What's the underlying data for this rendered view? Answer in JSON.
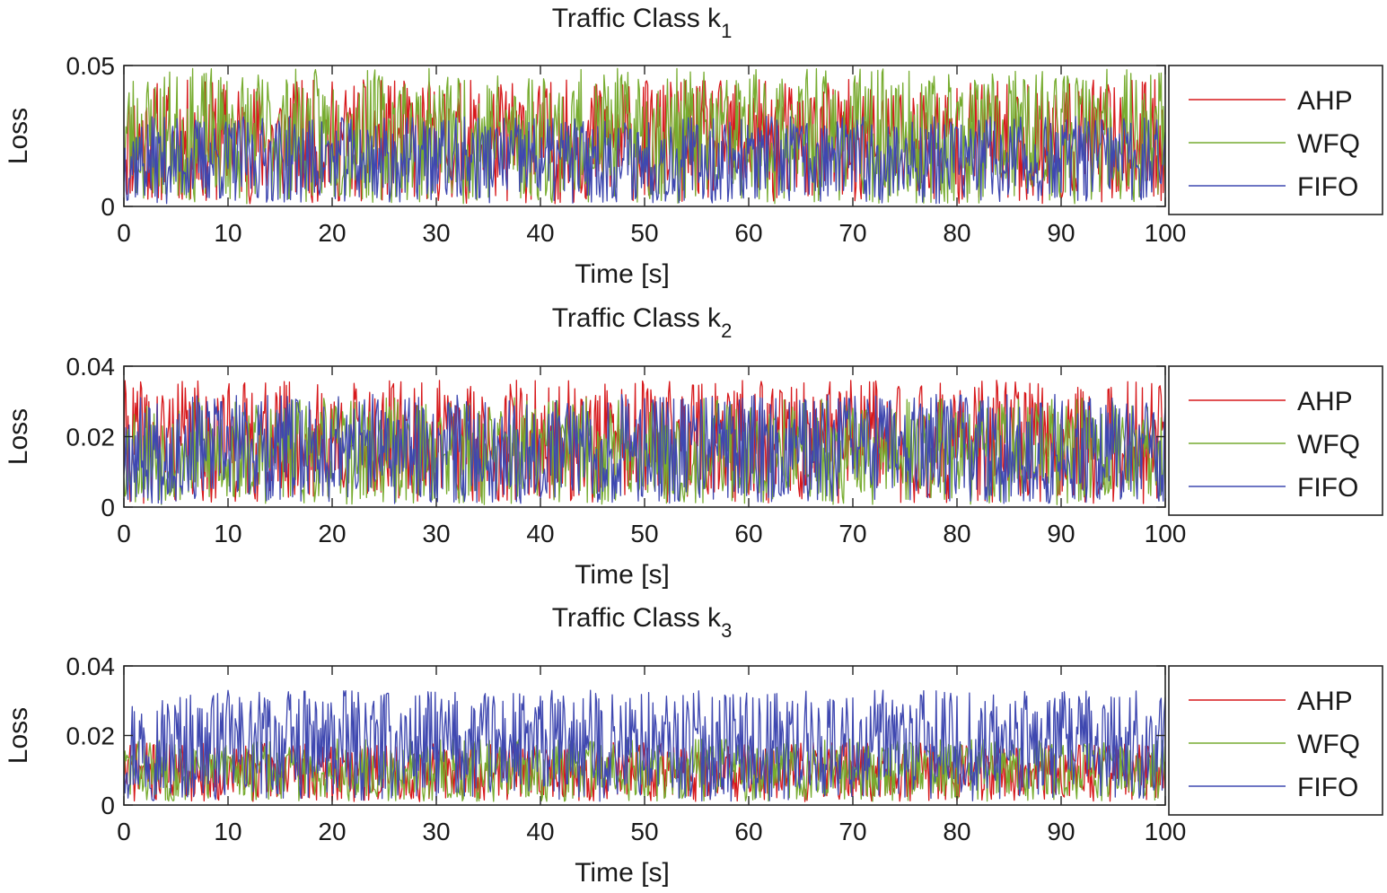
{
  "chart_data": [
    {
      "type": "line",
      "title": "Traffic Class k",
      "title_subscript": "1",
      "xlabel": "Time [s]",
      "ylabel": "Loss",
      "xlim": [
        0,
        100
      ],
      "ylim": [
        0,
        0.05
      ],
      "xticks": [
        0,
        10,
        20,
        30,
        40,
        50,
        60,
        70,
        80,
        90,
        100
      ],
      "xtick_labels": [
        "0",
        "10",
        "20",
        "30",
        "40",
        "50",
        "60",
        "70",
        "80",
        "90",
        "100"
      ],
      "yticks": [
        0,
        0.05
      ],
      "ytick_labels": [
        "0",
        "0.05"
      ],
      "legend_position": "outside-right",
      "series": [
        {
          "name": "AHP",
          "color": "#d7191c",
          "range": [
            0.001,
            0.045
          ],
          "seed": 11
        },
        {
          "name": "WFQ",
          "color": "#77ac30",
          "range": [
            0.001,
            0.049
          ],
          "seed": 23
        },
        {
          "name": "FIFO",
          "color": "#3f48b0",
          "range": [
            0.001,
            0.032
          ],
          "seed": 37
        }
      ]
    },
    {
      "type": "line",
      "title": "Traffic Class k",
      "title_subscript": "2",
      "xlabel": "Time [s]",
      "ylabel": "Loss",
      "xlim": [
        0,
        100
      ],
      "ylim": [
        0,
        0.04
      ],
      "xticks": [
        0,
        10,
        20,
        30,
        40,
        50,
        60,
        70,
        80,
        90,
        100
      ],
      "xtick_labels": [
        "0",
        "10",
        "20",
        "30",
        "40",
        "50",
        "60",
        "70",
        "80",
        "90",
        "100"
      ],
      "yticks": [
        0,
        0.02,
        0.04
      ],
      "ytick_labels": [
        "0",
        "0.02",
        "0.04"
      ],
      "legend_position": "outside-right",
      "series": [
        {
          "name": "AHP",
          "color": "#d7191c",
          "range": [
            0.001,
            0.036
          ],
          "seed": 41
        },
        {
          "name": "WFQ",
          "color": "#77ac30",
          "range": [
            0.0005,
            0.031
          ],
          "seed": 53
        },
        {
          "name": "FIFO",
          "color": "#3f48b0",
          "range": [
            0.001,
            0.032
          ],
          "seed": 67
        }
      ]
    },
    {
      "type": "line",
      "title": "Traffic Class k",
      "title_subscript": "3",
      "xlabel": "Time [s]",
      "ylabel": "Loss",
      "xlim": [
        0,
        100
      ],
      "ylim": [
        0,
        0.04
      ],
      "xticks": [
        0,
        10,
        20,
        30,
        40,
        50,
        60,
        70,
        80,
        90,
        100
      ],
      "xtick_labels": [
        "0",
        "10",
        "20",
        "30",
        "40",
        "50",
        "60",
        "70",
        "80",
        "90",
        "100"
      ],
      "yticks": [
        0,
        0.02,
        0.04
      ],
      "ytick_labels": [
        "0",
        "0.02",
        "0.04"
      ],
      "legend_position": "outside-right",
      "series": [
        {
          "name": "AHP",
          "color": "#d7191c",
          "range": [
            0.001,
            0.018
          ],
          "seed": 71
        },
        {
          "name": "WFQ",
          "color": "#77ac30",
          "range": [
            0.001,
            0.019
          ],
          "seed": 83
        },
        {
          "name": "FIFO",
          "color": "#3f48b0",
          "range": [
            0.001,
            0.033
          ],
          "seed": 97
        }
      ]
    }
  ]
}
